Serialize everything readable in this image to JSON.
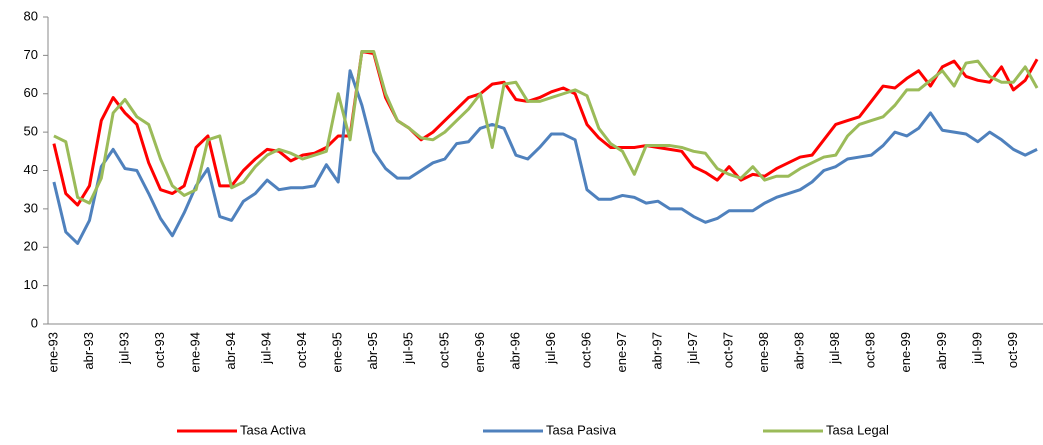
{
  "chart_data": {
    "type": "line",
    "categories": [
      "ene-93",
      null,
      null,
      "abr-93",
      null,
      null,
      "jul-93",
      null,
      null,
      "oct-93",
      null,
      null,
      "ene-94",
      null,
      null,
      "abr-94",
      null,
      null,
      "jul-94",
      null,
      null,
      "oct-94",
      null,
      null,
      "ene-95",
      null,
      null,
      "abr-95",
      null,
      null,
      "jul-95",
      null,
      null,
      "oct-95",
      null,
      null,
      "ene-96",
      null,
      null,
      "abr-96",
      null,
      null,
      "jul-96",
      null,
      null,
      "oct-96",
      null,
      null,
      "ene-97",
      null,
      null,
      "abr-97",
      null,
      null,
      "jul-97",
      null,
      null,
      "oct-97",
      null,
      null,
      "ene-98",
      null,
      null,
      "abr-98",
      null,
      null,
      "jul-98",
      null,
      null,
      "oct-98",
      null,
      null,
      "ene-99",
      null,
      null,
      "abr-99",
      null,
      null,
      "jul-99",
      null,
      null,
      "oct-99",
      null,
      null
    ],
    "series": [
      {
        "name": "Tasa Activa",
        "color": "#ff0000",
        "values": [
          47,
          34,
          31,
          36,
          53,
          59,
          55,
          52,
          42,
          35,
          34,
          36,
          46,
          49,
          36,
          36,
          40,
          43,
          45.5,
          45,
          42.5,
          44,
          44.5,
          46,
          49,
          49,
          71,
          70.5,
          59,
          53,
          51,
          48,
          50,
          53,
          56,
          59,
          60,
          62.5,
          63,
          58.5,
          58,
          59,
          60.5,
          61.5,
          60,
          52,
          48.5,
          46,
          46,
          46,
          46.5,
          46,
          45.5,
          45,
          41,
          39.5,
          37.5,
          41,
          37.5,
          39,
          38.5,
          40.5,
          42,
          43.5,
          44,
          48,
          52,
          53,
          54,
          58,
          62,
          61.5,
          64,
          66,
          62,
          67,
          68.5,
          64.5,
          63.5,
          63,
          67,
          61,
          63.5,
          69
        ]
      },
      {
        "name": "Tasa Pasiva",
        "color": "#4f81bd",
        "values": [
          37,
          24,
          21,
          27,
          41,
          45.5,
          40.5,
          40,
          34,
          27.5,
          23,
          29,
          36,
          40.5,
          28,
          27,
          32,
          34,
          37.5,
          35,
          35.5,
          35.5,
          36,
          41.5,
          37,
          66,
          57,
          45,
          40.5,
          38,
          38,
          40,
          42,
          43,
          47,
          47.5,
          51,
          52,
          51,
          44,
          43,
          46,
          49.5,
          49.5,
          48,
          35,
          32.5,
          32.5,
          33.5,
          33,
          31.5,
          32,
          30,
          30,
          28,
          26.5,
          27.5,
          29.5,
          29.5,
          29.5,
          31.5,
          33,
          34,
          35,
          37,
          40,
          41,
          43,
          43.5,
          44,
          46.5,
          50,
          49,
          51,
          55,
          50.5,
          50,
          49.5,
          47.5,
          50,
          48,
          45.5,
          44,
          45.5
        ]
      },
      {
        "name": "Tasa Legal",
        "color": "#9bbb59",
        "values": [
          49,
          47.5,
          33,
          31.5,
          38,
          55,
          58.5,
          54,
          52,
          43,
          36,
          33.5,
          35,
          48,
          49,
          35.5,
          37,
          41,
          44,
          45.5,
          44.5,
          43,
          44,
          45,
          60,
          48,
          71,
          71,
          60,
          53,
          51,
          48.5,
          48,
          50,
          53,
          56,
          60,
          46,
          62.5,
          63,
          58,
          58,
          59,
          60,
          61,
          59.5,
          51,
          47,
          45,
          39,
          46.5,
          46.5,
          46.5,
          46,
          45,
          44.5,
          40.5,
          39,
          38,
          41,
          37.5,
          38.5,
          38.5,
          40.5,
          42,
          43.5,
          44,
          49,
          52,
          53,
          54,
          57,
          61,
          61,
          63.5,
          66,
          62,
          68,
          68.5,
          64.5,
          63,
          63,
          67,
          61.5
        ]
      }
    ],
    "ylim": [
      0,
      80
    ],
    "yticks": [
      0,
      10,
      20,
      30,
      40,
      50,
      60,
      70,
      80
    ],
    "grid": false,
    "legend": "bottom"
  }
}
